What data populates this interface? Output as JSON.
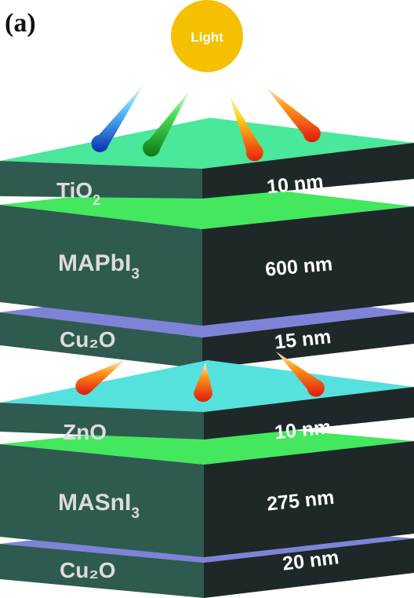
{
  "panel_label": "(a)",
  "light": {
    "label": "Light",
    "color": "#f5c000",
    "text_color": "#ffffff"
  },
  "colors": {
    "front_face": "#2f5a50",
    "side_face": "#1e2828",
    "label_text": "#dcdcdc",
    "tio2_top": "#49e89a",
    "green_stripe": "#43e85e",
    "zno_top": "#55e2de",
    "cu2o_top": "#7f83d8"
  },
  "top_stack": {
    "layers": [
      {
        "name": "TiO",
        "subscript": "2",
        "thickness": "10 nm"
      },
      {
        "name": "MAPbI",
        "subscript": "3",
        "thickness": "600 nm"
      },
      {
        "name": "Cu₂O",
        "subscript": "",
        "thickness": "15 nm"
      }
    ]
  },
  "bottom_stack": {
    "layers": [
      {
        "name": "ZnO",
        "subscript": "",
        "thickness": "10 nm"
      },
      {
        "name": "MASnI",
        "subscript": "3",
        "thickness": "275 nm"
      },
      {
        "name": "Cu₂O",
        "subscript": "",
        "thickness": "20 nm"
      }
    ]
  },
  "rays_top": [
    "blue",
    "green",
    "yellow-red",
    "orange-red"
  ],
  "rays_bottom": [
    "orange-red",
    "orange-red",
    "orange-red"
  ]
}
